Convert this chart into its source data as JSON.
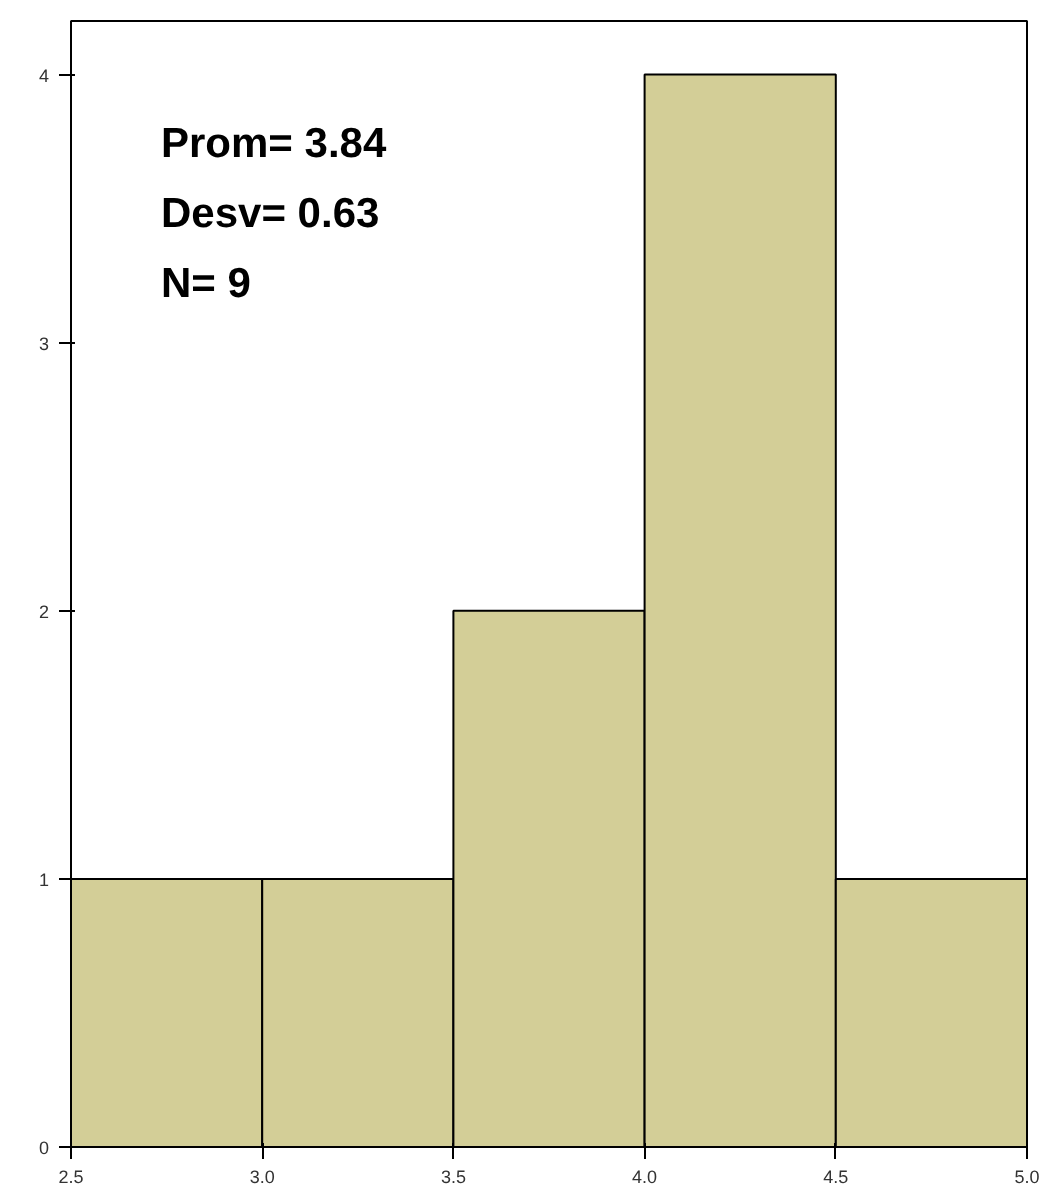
{
  "chart_data": {
    "type": "histogram",
    "bins": [
      2.5,
      3.0,
      3.5,
      4.0,
      4.5,
      5.0
    ],
    "values": [
      1,
      1,
      2,
      4,
      1
    ],
    "color": "#d3ce97",
    "xlim": [
      2.5,
      5.0
    ],
    "xticks": [
      {
        "value": 2.5,
        "label": "2.5"
      },
      {
        "value": 3.0,
        "label": "3.0"
      },
      {
        "value": 3.5,
        "label": "3.5"
      },
      {
        "value": 4.0,
        "label": "4.0"
      },
      {
        "value": 4.5,
        "label": "4.5"
      },
      {
        "value": 5.0,
        "label": "5.0"
      }
    ],
    "ylim": [
      0,
      4.2
    ],
    "yticks": [
      0,
      1,
      2,
      3,
      4
    ],
    "grid": false,
    "annotations": [
      "Prom= 3.84",
      "Desv= 0.63",
      "N= 9"
    ]
  }
}
